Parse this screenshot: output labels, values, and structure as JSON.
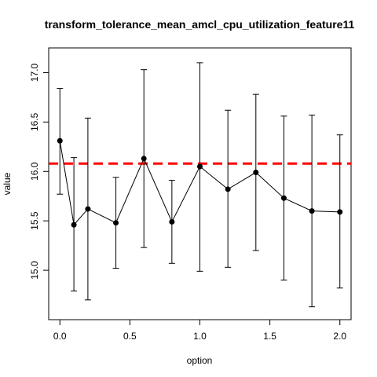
{
  "chart_data": {
    "type": "line",
    "title": "transform_tolerance_mean_amcl_cpu_utilization_feature11",
    "xlabel": "option",
    "ylabel": "value",
    "xlim": [
      -0.08,
      2.08
    ],
    "ylim": [
      14.5,
      17.25
    ],
    "x_ticks": [
      "0.0",
      "0.5",
      "1.0",
      "1.5",
      "2.0"
    ],
    "x_tick_values": [
      0.0,
      0.5,
      1.0,
      1.5,
      2.0
    ],
    "y_ticks": [
      "15.0",
      "15.5",
      "16.0",
      "16.5",
      "17.0"
    ],
    "y_tick_values": [
      15.0,
      15.5,
      16.0,
      16.5,
      17.0
    ],
    "series": [
      {
        "x": [
          0.0,
          0.1,
          0.2,
          0.4,
          0.6,
          0.8,
          1.0,
          1.2,
          1.4,
          1.6,
          1.8,
          2.0
        ],
        "values": [
          16.31,
          15.46,
          15.62,
          15.48,
          16.13,
          15.49,
          16.05,
          15.82,
          15.99,
          15.73,
          15.6,
          15.59
        ],
        "lower": [
          15.77,
          14.79,
          14.7,
          15.02,
          15.23,
          15.07,
          14.99,
          15.03,
          15.2,
          14.9,
          14.63,
          14.82
        ],
        "upper": [
          16.84,
          16.14,
          16.54,
          15.94,
          17.03,
          15.91,
          17.1,
          16.62,
          16.78,
          16.56,
          16.57,
          16.37
        ]
      }
    ],
    "reference_line": {
      "y": 16.08,
      "color": "#ff0000",
      "style": "dashed"
    },
    "grid": false
  }
}
